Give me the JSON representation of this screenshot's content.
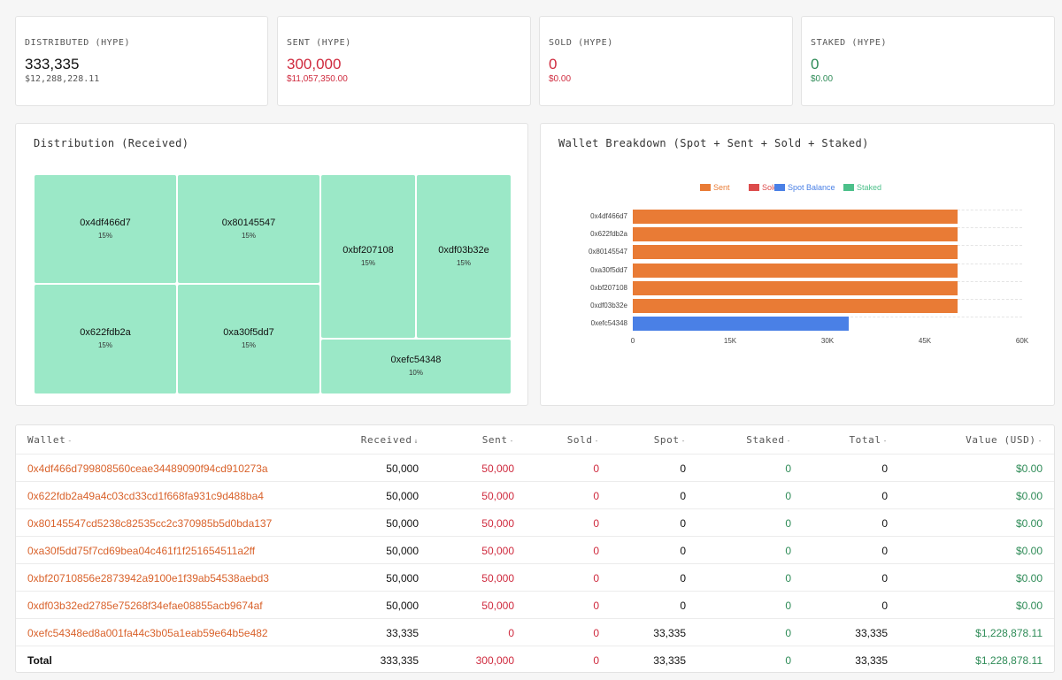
{
  "stats": [
    {
      "label": "DISTRIBUTED (HYPE)",
      "value": "333,335",
      "usd": "$12,288,228.11",
      "color": "black"
    },
    {
      "label": "SENT (HYPE)",
      "value": "300,000",
      "usd": "$11,057,350.00",
      "color": "red"
    },
    {
      "label": "SOLD (HYPE)",
      "value": "0",
      "usd": "$0.00",
      "color": "red"
    },
    {
      "label": "STAKED (HYPE)",
      "value": "0",
      "usd": "$0.00",
      "color": "green"
    }
  ],
  "treemap": {
    "title": "Distribution (Received)",
    "tiles": [
      {
        "name": "0x4df466d7",
        "pct": "15%"
      },
      {
        "name": "0x80145547",
        "pct": "15%"
      },
      {
        "name": "0xbf207108",
        "pct": "15%"
      },
      {
        "name": "0xdf03b32e",
        "pct": "15%"
      },
      {
        "name": "0x622fdb2a",
        "pct": "15%"
      },
      {
        "name": "0xa30f5dd7",
        "pct": "15%"
      },
      {
        "name": "0xefc54348",
        "pct": "10%"
      }
    ]
  },
  "chart_data": {
    "type": "bar",
    "orientation": "horizontal",
    "stacked": true,
    "title": "Wallet Breakdown (Spot + Sent + Sold + Staked)",
    "categories": [
      "0x4df466d7",
      "0x622fdb2a",
      "0x80145547",
      "0xa30f5dd7",
      "0xbf207108",
      "0xdf03b32e",
      "0xefc54348"
    ],
    "series": [
      {
        "name": "Sent",
        "color": "#e97b35",
        "values": [
          50000,
          50000,
          50000,
          50000,
          50000,
          50000,
          0
        ]
      },
      {
        "name": "Sold",
        "color": "#dc4b4b",
        "values": [
          0,
          0,
          0,
          0,
          0,
          0,
          0
        ]
      },
      {
        "name": "Spot Balance",
        "color": "#4a80e6",
        "values": [
          0,
          0,
          0,
          0,
          0,
          0,
          33335
        ]
      },
      {
        "name": "Staked",
        "color": "#4cc08a",
        "values": [
          0,
          0,
          0,
          0,
          0,
          0,
          0
        ]
      }
    ],
    "xticks": [
      "0",
      "15K",
      "30K",
      "45K",
      "60K"
    ],
    "xlim": [
      0,
      60000
    ],
    "legend": "top",
    "grid": true
  },
  "table": {
    "headers": [
      "Wallet",
      "Received",
      "Sent",
      "Sold",
      "Spot",
      "Staked",
      "Total",
      "Value (USD)"
    ],
    "sort_indicators": [
      "-",
      "↓",
      "-",
      "-",
      "-",
      "-",
      "-",
      "-"
    ],
    "rows": [
      [
        "0x4df466d799808560ceae34489090f94cd910273a",
        "50,000",
        "50,000",
        "0",
        "0",
        "0",
        "0",
        "$0.00"
      ],
      [
        "0x622fdb2a49a4c03cd33cd1f668fa931c9d488ba4",
        "50,000",
        "50,000",
        "0",
        "0",
        "0",
        "0",
        "$0.00"
      ],
      [
        "0x80145547cd5238c82535cc2c370985b5d0bda137",
        "50,000",
        "50,000",
        "0",
        "0",
        "0",
        "0",
        "$0.00"
      ],
      [
        "0xa30f5dd75f7cd69bea04c461f1f251654511a2ff",
        "50,000",
        "50,000",
        "0",
        "0",
        "0",
        "0",
        "$0.00"
      ],
      [
        "0xbf20710856e2873942a9100e1f39ab54538aebd3",
        "50,000",
        "50,000",
        "0",
        "0",
        "0",
        "0",
        "$0.00"
      ],
      [
        "0xdf03b32ed2785e75268f34efae08855acb9674af",
        "50,000",
        "50,000",
        "0",
        "0",
        "0",
        "0",
        "$0.00"
      ],
      [
        "0xefc54348ed8a001fa44c3b05a1eab59e64b5e482",
        "33,335",
        "0",
        "0",
        "33,335",
        "0",
        "33,335",
        "$1,228,878.11"
      ]
    ],
    "total": [
      "Total",
      "333,335",
      "300,000",
      "0",
      "33,335",
      "0",
      "33,335",
      "$1,228,878.11"
    ]
  }
}
